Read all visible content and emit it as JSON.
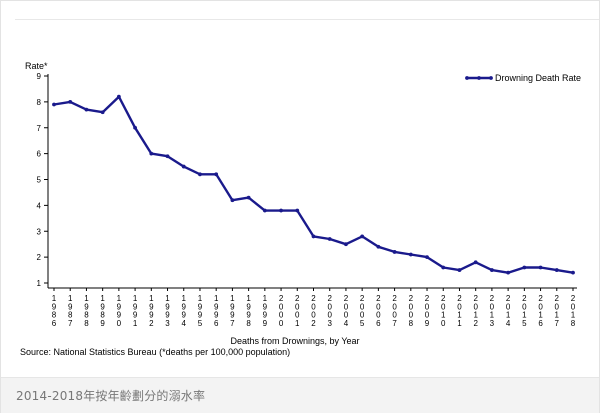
{
  "chart_data": {
    "type": "line",
    "ylabel": "Rate*",
    "xlabel": "Deaths from Drownings, by Year",
    "source": "Source: National Statistics Bureau (*deaths per 100,000 population)",
    "ylim": [
      1,
      9
    ],
    "yticks": [
      "1",
      "2",
      "3",
      "4",
      "5",
      "6",
      "7",
      "8",
      "9"
    ],
    "grid": false,
    "legend_position": "top-right",
    "series": [
      {
        "name": "Drowning Death Rate",
        "color": "#1a1a8c",
        "x": [
          "1986",
          "1987",
          "1988",
          "1989",
          "1990",
          "1991",
          "1992",
          "1993",
          "1994",
          "1995",
          "1996",
          "1997",
          "1998",
          "1999",
          "2000",
          "2001",
          "2002",
          "2003",
          "2004",
          "2005",
          "2006",
          "2007",
          "2008",
          "2009",
          "2010",
          "2011",
          "2012",
          "2013",
          "2014",
          "2015",
          "2016",
          "2017",
          "2018"
        ],
        "values": [
          7.9,
          8.0,
          7.7,
          7.6,
          8.2,
          7.0,
          6.0,
          5.9,
          5.5,
          5.2,
          5.2,
          4.2,
          4.3,
          3.8,
          3.8,
          3.8,
          2.8,
          2.7,
          2.5,
          2.8,
          2.4,
          2.2,
          2.1,
          2.0,
          1.6,
          1.5,
          1.8,
          1.5,
          1.4,
          1.6,
          1.6,
          1.5,
          1.4
        ]
      }
    ]
  },
  "caption": "2014-2018年按年齡劃分的溺水率"
}
